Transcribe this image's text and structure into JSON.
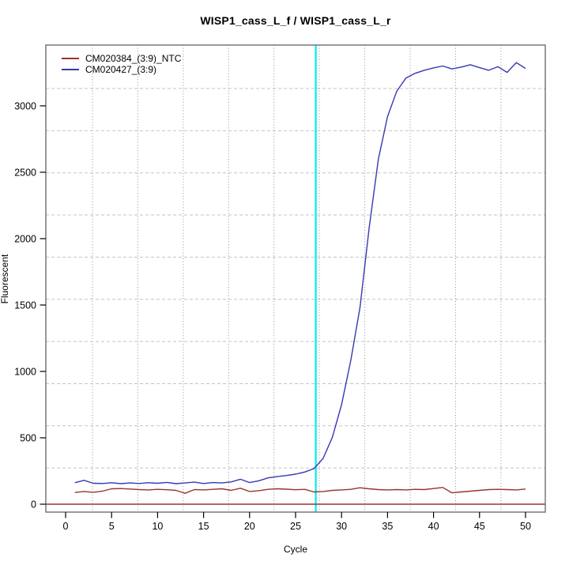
{
  "title": "WISP1_cass_L_f / WISP1_cass_L_r",
  "chart_data": {
    "type": "line",
    "title": "WISP1_cass_L_f / WISP1_cass_L_r",
    "xlabel": "Cycle",
    "ylabel": "Fluorescent",
    "legend_position": "top-left",
    "grid": {
      "horizontal_style": "dashed",
      "vertical_style": "dotted",
      "on": true
    },
    "x_ticks": [
      0,
      5,
      10,
      15,
      20,
      25,
      30,
      35,
      40,
      45,
      50
    ],
    "y_ticks": [
      0,
      500,
      1000,
      1500,
      2000,
      2500,
      3000
    ],
    "xlim": [
      -2.15,
      52.15
    ],
    "ylim": [
      -59.5,
      3458
    ],
    "x": [
      1,
      2,
      3,
      4,
      5,
      6,
      7,
      8,
      9,
      10,
      11,
      12,
      13,
      14,
      15,
      16,
      17,
      18,
      19,
      20,
      21,
      22,
      23,
      24,
      25,
      26,
      27,
      28,
      29,
      30,
      31,
      32,
      33,
      34,
      35,
      36,
      37,
      38,
      39,
      40,
      41,
      42,
      43,
      44,
      45,
      46,
      47,
      48,
      49,
      50
    ],
    "series": [
      {
        "name": "CM020384_(3:9)_NTC",
        "color": "#993333",
        "values": [
          88,
          96,
          90,
          98,
          116,
          118,
          114,
          110,
          108,
          112,
          109,
          104,
          82,
          110,
          108,
          112,
          116,
          104,
          120,
          96,
          102,
          112,
          116,
          113,
          109,
          112,
          92,
          96,
          104,
          108,
          112,
          124,
          116,
          110,
          108,
          110,
          108,
          112,
          110,
          118,
          126,
          86,
          92,
          98,
          104,
          110,
          112,
          110,
          108,
          114
        ]
      },
      {
        "name": "CM020427_(3:9)",
        "color": "#3838B2",
        "values": [
          162,
          180,
          158,
          156,
          162,
          155,
          160,
          156,
          162,
          158,
          164,
          155,
          160,
          166,
          156,
          163,
          160,
          168,
          188,
          163,
          176,
          198,
          208,
          216,
          226,
          242,
          268,
          345,
          505,
          750,
          1080,
          1480,
          2080,
          2600,
          2920,
          3110,
          3210,
          3245,
          3268,
          3286,
          3300,
          3278,
          3292,
          3310,
          3288,
          3268,
          3295,
          3252,
          3326,
          3282
        ]
      }
    ],
    "threshold_line": {
      "y": 0,
      "color": "#993333"
    },
    "ct_line": {
      "x": 27.2,
      "color": "#00EEEE"
    }
  }
}
